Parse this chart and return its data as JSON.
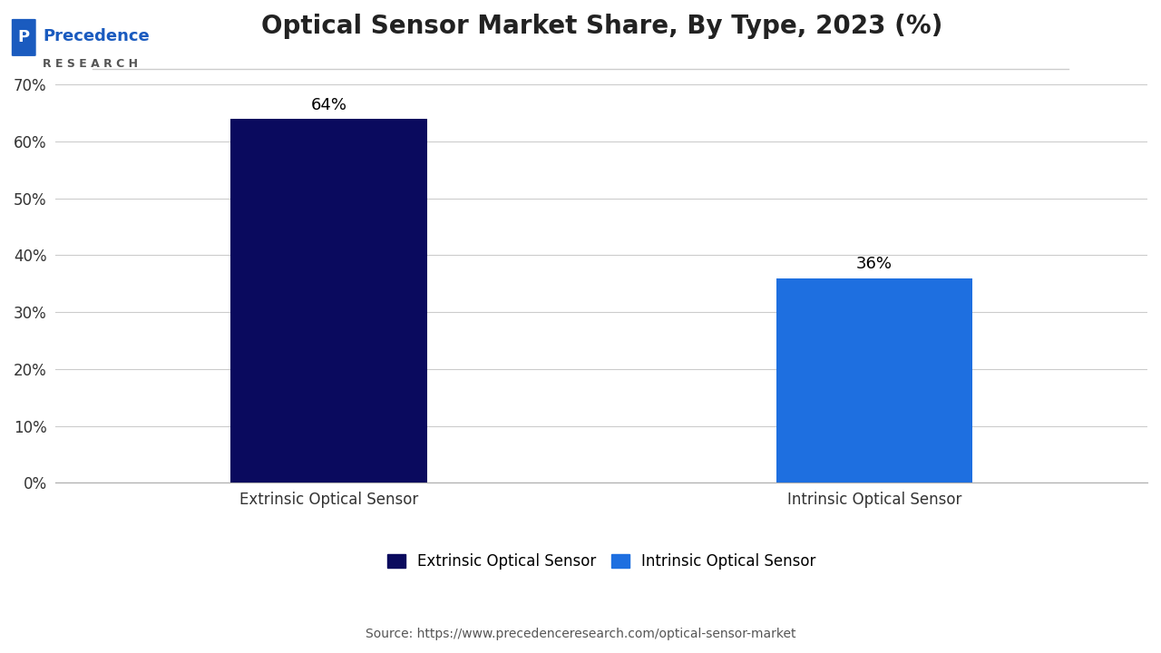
{
  "title": "Optical Sensor Market Share, By Type, 2023 (%)",
  "categories": [
    "Extrinsic Optical Sensor",
    "Intrinsic Optical Sensor"
  ],
  "values": [
    64,
    36
  ],
  "bar_colors": [
    "#0a0a5e",
    "#1e6fe0"
  ],
  "value_labels": [
    "64%",
    "36%"
  ],
  "yticks": [
    0,
    10,
    20,
    30,
    40,
    50,
    60,
    70
  ],
  "ytick_labels": [
    "0%",
    "10%",
    "20%",
    "30%",
    "40%",
    "50%",
    "60%",
    "70%"
  ],
  "legend_labels": [
    "Extrinsic Optical Sensor",
    "Intrinsic Optical Sensor"
  ],
  "source_text": "Source: https://www.precedenceresearch.com/optical-sensor-market",
  "background_color": "#ffffff",
  "title_fontsize": 20,
  "label_fontsize": 12,
  "tick_fontsize": 12,
  "bar_value_fontsize": 13,
  "source_fontsize": 10
}
